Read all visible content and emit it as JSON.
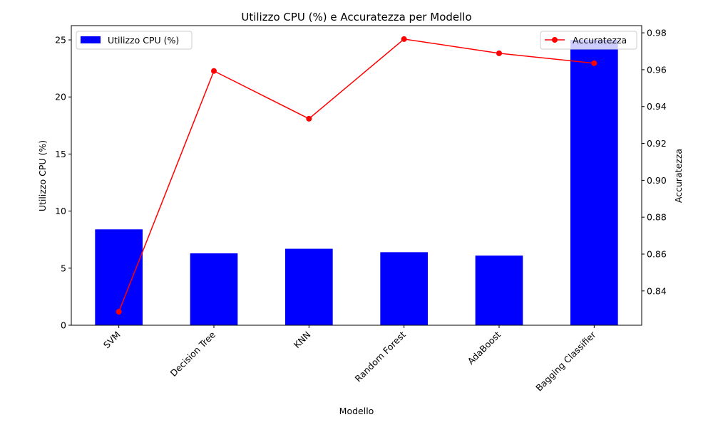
{
  "chart_data": {
    "type": "bar",
    "title": "Utilizzo CPU (%) e Accuratezza per Modello",
    "xlabel": "Modello",
    "ylabel": "Utilizzo CPU (%)",
    "y2label": "Accuratezza",
    "categories": [
      "SVM",
      "Decision Tree",
      "KNN",
      "Random Forest",
      "AdaBoost",
      "Bagging Classifier"
    ],
    "series": [
      {
        "name": "Utilizzo CPU (%)",
        "type": "bar",
        "axis": "left",
        "color": "#0000ff",
        "values": [
          8.4,
          6.3,
          6.7,
          6.4,
          6.1,
          25.0
        ]
      },
      {
        "name": "Accuratezza",
        "type": "line",
        "axis": "right",
        "color": "#ff0000",
        "marker": "circle",
        "values": [
          0.8287,
          0.9593,
          0.9334,
          0.9766,
          0.9689,
          0.9635
        ]
      }
    ],
    "ylim": [
      0,
      26.25
    ],
    "y2lim": [
      0.8214,
      0.9839
    ],
    "yticks": [
      0,
      5,
      10,
      15,
      20,
      25
    ],
    "y2ticks": [
      0.84,
      0.86,
      0.88,
      0.9,
      0.92,
      0.94,
      0.96,
      0.98
    ],
    "y2tick_labels": [
      "0.84",
      "0.86",
      "0.88",
      "0.90",
      "0.92",
      "0.94",
      "0.96",
      "0.98"
    ],
    "grid": false,
    "legend_left": "top-left",
    "legend_right": "top-right"
  }
}
